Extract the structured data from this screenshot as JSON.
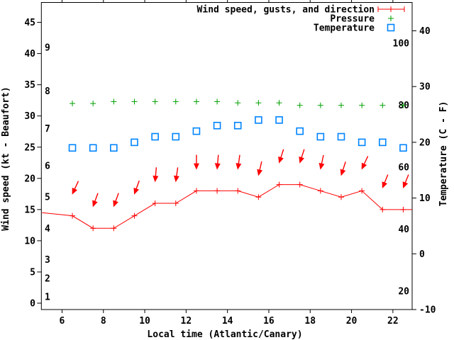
{
  "chart_data": {
    "type": "line",
    "title": "",
    "colors": {
      "wind": "#ff0000",
      "pressure": "#00a000",
      "temperature": "#0084ff",
      "axis": "#000000",
      "background": "#ffffff"
    },
    "x_axis": {
      "label": "Local time (Atlantic/Canary)",
      "min": 5,
      "max": 23,
      "ticks": [
        {
          "h": 6,
          "label": "6"
        },
        {
          "h": 8,
          "label": "8"
        },
        {
          "h": 10,
          "label": "10"
        },
        {
          "h": 12,
          "label": "12"
        },
        {
          "h": 14,
          "label": "14"
        },
        {
          "h": 16,
          "label": "16"
        },
        {
          "h": 18,
          "label": "18"
        },
        {
          "h": 20,
          "label": "20"
        },
        {
          "h": 22,
          "label": "22"
        }
      ]
    },
    "y_left_axis": {
      "label": "Wind speed (kt - Beaufort)",
      "min": -1,
      "max": 48,
      "kt_ticks": [
        {
          "kt": 0,
          "label": "0"
        },
        {
          "kt": 5,
          "label": "5"
        },
        {
          "kt": 10,
          "label": "10"
        },
        {
          "kt": 15,
          "label": "15"
        },
        {
          "kt": 20,
          "label": "20"
        },
        {
          "kt": 25,
          "label": "25"
        },
        {
          "kt": 30,
          "label": "30"
        },
        {
          "kt": 35,
          "label": "35"
        },
        {
          "kt": 40,
          "label": "40"
        },
        {
          "kt": 45,
          "label": "45"
        }
      ],
      "beaufort_labels": [
        {
          "kt": 1,
          "label": "1"
        },
        {
          "kt": 4,
          "label": "2"
        },
        {
          "kt": 7,
          "label": "3"
        },
        {
          "kt": 12,
          "label": "4"
        },
        {
          "kt": 17,
          "label": "5"
        },
        {
          "kt": 22,
          "label": "6"
        },
        {
          "kt": 28,
          "label": "7"
        },
        {
          "kt": 34,
          "label": "8"
        },
        {
          "kt": 41,
          "label": "9"
        }
      ]
    },
    "y_right_axis": {
      "label": "Temperature (C - F)",
      "c_min": -10,
      "c_max": 45,
      "c_ticks": [
        {
          "c": -10,
          "label": "-10"
        },
        {
          "c": 0,
          "label": "0"
        },
        {
          "c": 10,
          "label": "10"
        },
        {
          "c": 20,
          "label": "20"
        },
        {
          "c": 30,
          "label": "30"
        },
        {
          "c": 40,
          "label": "40"
        }
      ],
      "f_inside_labels": [
        {
          "f": 20,
          "label": "20"
        },
        {
          "f": 40,
          "label": "40"
        },
        {
          "f": 60,
          "label": "60"
        },
        {
          "f": 80,
          "label": "80"
        },
        {
          "f": 100,
          "label": "100"
        }
      ]
    },
    "hours": [
      6.5,
      7.5,
      8.5,
      9.5,
      10.5,
      11.5,
      12.5,
      13.5,
      14.5,
      15.5,
      16.5,
      17.5,
      18.5,
      19.5,
      20.5,
      21.5,
      22.5
    ],
    "series": [
      {
        "name": "Wind speed, gusts, and direction",
        "key": "wind",
        "style": "line-with-plus-markers-and-direction-arrows",
        "speed_kt": [
          14,
          12,
          12,
          14,
          16,
          16,
          18,
          18,
          18,
          17,
          19,
          19,
          18,
          17,
          18,
          15,
          15
        ],
        "gust_kt": [
          17.5,
          15.5,
          15.5,
          17.5,
          19.5,
          19.5,
          21.5,
          21.5,
          21.5,
          20.5,
          22.5,
          22.5,
          21.5,
          20.5,
          21.5,
          18.5,
          18.5
        ],
        "arrow_tilt_deg": [
          25,
          20,
          20,
          20,
          5,
          8,
          0,
          5,
          8,
          13,
          18,
          18,
          12,
          18,
          25,
          22,
          22
        ],
        "edge_start": {
          "hour": 5.03,
          "kt": 14.5
        },
        "edge_end": {
          "hour": 22.93,
          "kt": 15
        }
      },
      {
        "name": "Pressure",
        "key": "pressure",
        "style": "plus-markers",
        "plot_y_kt": [
          32.0,
          32.0,
          32.3,
          32.3,
          32.3,
          32.3,
          32.3,
          32.3,
          32.1,
          32.1,
          32.1,
          31.7,
          31.7,
          31.7,
          31.7,
          31.7,
          31.7
        ]
      },
      {
        "name": "Temperature",
        "key": "temperature",
        "style": "open-square-markers",
        "values_c": [
          19,
          19,
          19,
          20,
          21,
          21,
          22,
          23,
          23,
          24,
          24,
          22,
          21,
          21,
          20,
          20,
          19
        ]
      }
    ],
    "legend": {
      "position": "top-right-inside",
      "entries": [
        {
          "label": "Wind speed, gusts, and direction",
          "series": "wind"
        },
        {
          "label": "Pressure",
          "series": "pressure"
        },
        {
          "label": "Temperature",
          "series": "temperature"
        }
      ]
    }
  }
}
